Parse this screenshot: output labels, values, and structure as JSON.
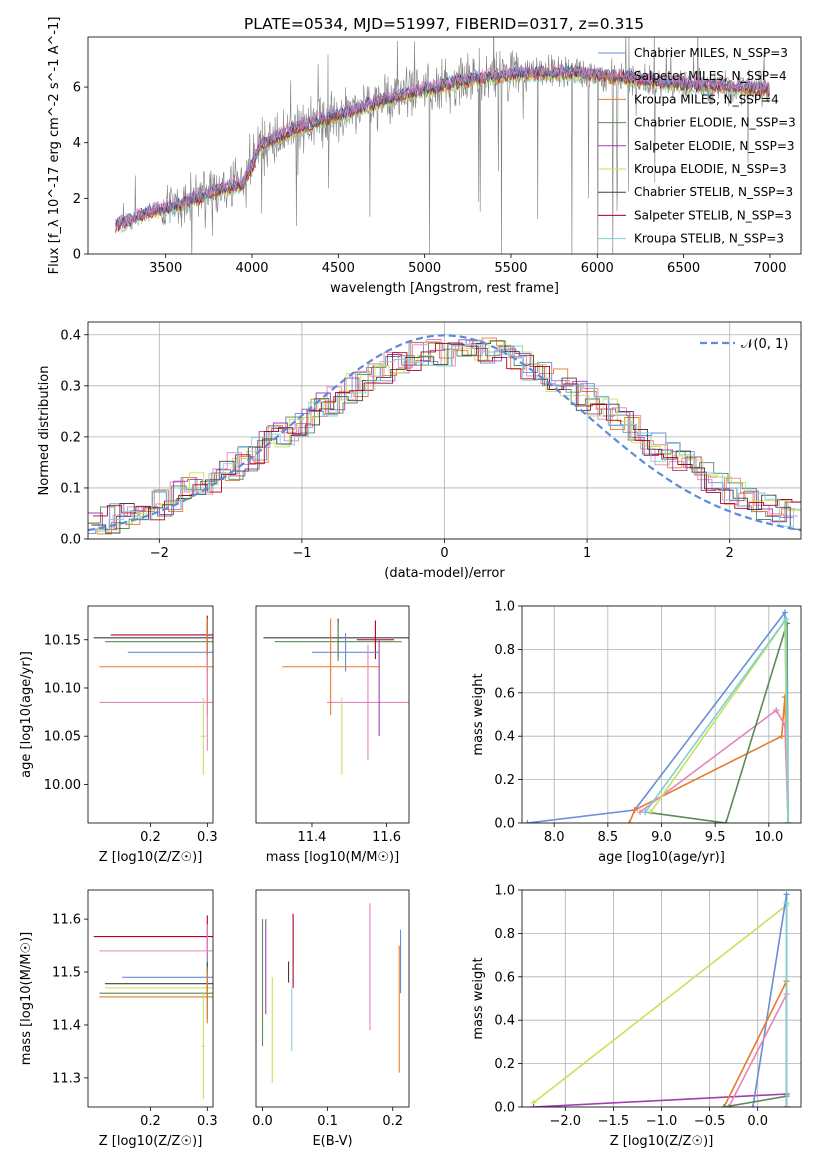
{
  "title": "PLATE=0534, MJD=51997, FIBERID=0317, z=0.315",
  "colors": {
    "observed": "#808080",
    "c1": "#6a8fd8",
    "c2": "#e87a2c",
    "c3": "#e285bf",
    "c4": "#5a8a5a",
    "c5": "#a040b0",
    "c6": "#c8e05a",
    "c7": "#404040",
    "c8": "#b00020",
    "c9": "#80d0d8",
    "gauss": "#5b8bd9"
  },
  "chart_data": [
    {
      "id": "spectrum",
      "type": "line",
      "xlabel": "wavelength [Angstrom, rest frame]",
      "ylabel": "Flux [f_λ 10^-17 erg cm^-2 s^-1 A^-1]",
      "xlim": [
        3050,
        7180
      ],
      "ylim": [
        0,
        7.8
      ],
      "xticks": [
        3500,
        4000,
        4500,
        5000,
        5500,
        6000,
        6500,
        7000
      ],
      "yticks": [
        0,
        2,
        4,
        6
      ],
      "continuum": {
        "x": [
          3210,
          3400,
          3600,
          3800,
          3950,
          4050,
          4250,
          4500,
          4800,
          5000,
          5300,
          5600,
          5900,
          6200,
          6500,
          6800,
          7000
        ],
        "y": [
          1.0,
          1.5,
          1.8,
          2.3,
          2.5,
          3.9,
          4.5,
          5.0,
          5.6,
          5.9,
          6.3,
          6.5,
          6.5,
          6.3,
          6.1,
          6.0,
          5.9
        ]
      },
      "legend": [
        {
          "label": "Chabrier MILES, N_SSP=3",
          "color": "c1"
        },
        {
          "label": "Salpeter MILES, N_SSP=4",
          "color": "c2"
        },
        {
          "label": "Kroupa MILES, N_SSP=4",
          "color": "c2"
        },
        {
          "label": "Chabrier ELODIE, N_SSP=3",
          "color": "c4"
        },
        {
          "label": "Salpeter ELODIE, N_SSP=3",
          "color": "c5"
        },
        {
          "label": "Kroupa ELODIE, N_SSP=3",
          "color": "c6"
        },
        {
          "label": "Chabrier STELIB, N_SSP=3",
          "color": "c7"
        },
        {
          "label": "Salpeter STELIB, N_SSP=3",
          "color": "c8"
        },
        {
          "label": "Kroupa STELIB, N_SSP=3",
          "color": "c9"
        }
      ],
      "legend_placement": "upper right"
    },
    {
      "id": "residuals",
      "type": "bar",
      "xlabel": "(data-model)/error",
      "ylabel": "Normed distribution",
      "xlim": [
        -2.5,
        2.5
      ],
      "ylim": [
        0,
        0.425
      ],
      "xticks": [
        -2,
        -1,
        0,
        1,
        2
      ],
      "yticks": [
        0.0,
        0.1,
        0.2,
        0.3,
        0.4
      ],
      "grid": true,
      "legend": [
        {
          "label": "N(0,1)",
          "color": "gauss"
        }
      ],
      "legend_placement": "upper right"
    },
    {
      "id": "age-vs-Z",
      "type": "scatter",
      "xlabel": "Z [log10(Z/Z☉)]",
      "ylabel": "age  [log10(age/yr)]",
      "xlim": [
        0.09,
        0.31
      ],
      "ylim": [
        9.96,
        10.185
      ],
      "xticks": [
        0.2,
        0.3
      ],
      "yticks": [
        10.0,
        10.05,
        10.1,
        10.15
      ],
      "points": [
        {
          "x": 0.3,
          "y": 10.152,
          "xerr": 0.2,
          "yerr": 0.02,
          "color": "c7"
        },
        {
          "x": 0.3,
          "y": 10.148,
          "xerr": 0.18,
          "yerr": 0.02,
          "color": "c4"
        },
        {
          "x": 0.3,
          "y": 10.155,
          "xerr": 0.17,
          "yerr": 0.02,
          "color": "c8"
        },
        {
          "x": 0.3,
          "y": 10.137,
          "xerr": 0.14,
          "yerr": 0.02,
          "color": "c1"
        },
        {
          "x": 0.3,
          "y": 10.122,
          "xerr": 0.19,
          "yerr": 0.05,
          "color": "c2"
        },
        {
          "x": 0.3,
          "y": 10.085,
          "xerr": 0.19,
          "yerr": 0.05,
          "color": "c3"
        },
        {
          "x": 0.293,
          "y": 10.05,
          "xerr": 0.005,
          "yerr": 0.04,
          "color": "c6"
        }
      ]
    },
    {
      "id": "age-vs-mass",
      "type": "scatter",
      "xlabel": "mass [log10(M/M☉)]",
      "ylabel": "",
      "xlim": [
        11.25,
        11.66
      ],
      "ylim": [
        9.96,
        10.185
      ],
      "xticks": [
        11.4,
        11.6
      ],
      "points": [
        {
          "x": 11.47,
          "y": 10.152,
          "xerr": 0.2,
          "yerr": 0.02,
          "color": "c7"
        },
        {
          "x": 11.47,
          "y": 10.148,
          "xerr": 0.17,
          "yerr": 0.02,
          "color": "c4"
        },
        {
          "x": 11.57,
          "y": 10.15,
          "xerr": 0.05,
          "yerr": 0.02,
          "color": "c8"
        },
        {
          "x": 11.49,
          "y": 10.137,
          "xerr": 0.09,
          "yerr": 0.02,
          "color": "c1"
        },
        {
          "x": 11.45,
          "y": 10.122,
          "xerr": 0.13,
          "yerr": 0.05,
          "color": "c2"
        },
        {
          "x": 11.55,
          "y": 10.085,
          "xerr": 0.11,
          "yerr": 0.06,
          "color": "c3"
        },
        {
          "x": 11.58,
          "y": 10.1,
          "xerr": 0.0,
          "yerr": 0.05,
          "color": "c5"
        },
        {
          "x": 11.48,
          "y": 10.05,
          "xerr": 0.0,
          "yerr": 0.04,
          "color": "c6"
        }
      ]
    },
    {
      "id": "massweight-vs-age",
      "type": "line",
      "xlabel": "age  [log10(age/yr)]",
      "ylabel": "mass weight",
      "xlim": [
        7.7,
        10.3
      ],
      "ylim": [
        0,
        1.0
      ],
      "xticks": [
        8.0,
        8.5,
        9.0,
        9.5,
        10.0
      ],
      "yticks": [
        0.0,
        0.2,
        0.4,
        0.6,
        0.8,
        1.0
      ],
      "grid": true,
      "series": [
        {
          "color": "c1",
          "x": [
            7.75,
            8.75,
            10.15,
            10.18
          ],
          "y": [
            0.0,
            0.06,
            0.97,
            0.0
          ]
        },
        {
          "color": "c2",
          "x": [
            8.7,
            8.75,
            10.12,
            10.15,
            10.18
          ],
          "y": [
            0.0,
            0.06,
            0.4,
            0.58,
            0.0
          ]
        },
        {
          "color": "c3",
          "x": [
            8.8,
            10.07,
            10.15,
            10.18
          ],
          "y": [
            0.05,
            0.52,
            0.45,
            0.0
          ]
        },
        {
          "color": "c4",
          "x": [
            8.85,
            9.6,
            10.17,
            10.18
          ],
          "y": [
            0.05,
            0.0,
            0.92,
            0.0
          ]
        },
        {
          "color": "c6",
          "x": [
            8.9,
            10.15,
            10.18
          ],
          "y": [
            0.05,
            0.93,
            0.0
          ]
        },
        {
          "color": "c9",
          "x": [
            8.85,
            10.16,
            10.18
          ],
          "y": [
            0.05,
            0.94,
            0.0
          ]
        }
      ]
    },
    {
      "id": "mass-vs-Z",
      "type": "scatter",
      "xlabel": "Z [log10(Z/Z☉)]",
      "ylabel": "mass [log10(M/M☉)]",
      "xlim": [
        0.09,
        0.31
      ],
      "ylim": [
        11.245,
        11.655
      ],
      "xticks": [
        0.2,
        0.3
      ],
      "yticks": [
        11.3,
        11.4,
        11.5,
        11.6
      ],
      "points": [
        {
          "x": 0.3,
          "y": 11.567,
          "xerr": 0.2,
          "yerr": 0.04,
          "color": "c8"
        },
        {
          "x": 0.3,
          "y": 11.54,
          "xerr": 0.19,
          "yerr": 0.05,
          "color": "c3"
        },
        {
          "x": 0.3,
          "y": 11.49,
          "xerr": 0.15,
          "yerr": 0.04,
          "color": "c1"
        },
        {
          "x": 0.3,
          "y": 11.478,
          "xerr": 0.18,
          "yerr": 0.04,
          "color": "c7"
        },
        {
          "x": 0.3,
          "y": 11.47,
          "xerr": 0.18,
          "yerr": 0.04,
          "color": "c6"
        },
        {
          "x": 0.3,
          "y": 11.46,
          "xerr": 0.19,
          "yerr": 0.05,
          "color": "c4"
        },
        {
          "x": 0.3,
          "y": 11.453,
          "xerr": 0.19,
          "yerr": 0.05,
          "color": "c2"
        },
        {
          "x": 0.293,
          "y": 11.36,
          "xerr": 0.003,
          "yerr": 0.1,
          "color": "c6"
        }
      ]
    },
    {
      "id": "mass-vs-EBV",
      "type": "scatter",
      "xlabel": "E(B-V)",
      "ylabel": "",
      "xlim": [
        -0.01,
        0.225
      ],
      "ylim": [
        11.245,
        11.655
      ],
      "xticks": [
        0.0,
        0.1,
        0.2
      ],
      "points": [
        {
          "x": 0.0,
          "y": 11.48,
          "xerr": 0,
          "yerr": 0.12,
          "color": "c4"
        },
        {
          "x": 0.005,
          "y": 11.51,
          "xerr": 0,
          "yerr": 0.09,
          "color": "c5"
        },
        {
          "x": 0.015,
          "y": 11.39,
          "xerr": 0,
          "yerr": 0.1,
          "color": "c6"
        },
        {
          "x": 0.04,
          "y": 11.5,
          "xerr": 0,
          "yerr": 0.02,
          "color": "c7"
        },
        {
          "x": 0.045,
          "y": 11.41,
          "xerr": 0,
          "yerr": 0.06,
          "color": "c9"
        },
        {
          "x": 0.047,
          "y": 11.54,
          "xerr": 0,
          "yerr": 0.07,
          "color": "c8"
        },
        {
          "x": 0.165,
          "y": 11.51,
          "xerr": 0,
          "yerr": 0.12,
          "color": "c3"
        },
        {
          "x": 0.21,
          "y": 11.43,
          "xerr": 0,
          "yerr": 0.12,
          "color": "c2"
        },
        {
          "x": 0.212,
          "y": 11.52,
          "xerr": 0,
          "yerr": 0.06,
          "color": "c1"
        }
      ]
    },
    {
      "id": "massweight-vs-Z",
      "type": "line",
      "xlabel": "Z [log10(Z/Z☉)]",
      "ylabel": "mass weight",
      "xlim": [
        -2.45,
        0.45
      ],
      "ylim": [
        0,
        1.0
      ],
      "xticks": [
        -2.0,
        -1.5,
        -1.0,
        -0.5,
        0.0
      ],
      "yticks": [
        0.0,
        0.2,
        0.4,
        0.6,
        0.8,
        1.0
      ],
      "grid": true,
      "series": [
        {
          "color": "c6",
          "x": [
            -2.33,
            0.3,
            0.3
          ],
          "y": [
            0.02,
            0.93,
            0.0
          ]
        },
        {
          "color": "c5",
          "x": [
            -2.33,
            0.3
          ],
          "y": [
            0.0,
            0.06
          ]
        },
        {
          "color": "c1",
          "x": [
            -0.05,
            0.3,
            0.3
          ],
          "y": [
            0.0,
            0.98,
            0.0
          ]
        },
        {
          "color": "c2",
          "x": [
            -0.35,
            0.3,
            0.3
          ],
          "y": [
            0.0,
            0.58,
            0.0
          ]
        },
        {
          "color": "c3",
          "x": [
            -0.3,
            0.3,
            0.3
          ],
          "y": [
            0.0,
            0.52,
            0.0
          ]
        },
        {
          "color": "c4",
          "x": [
            -0.35,
            0.3,
            0.3
          ],
          "y": [
            0.0,
            0.05,
            0.0
          ]
        },
        {
          "color": "c9",
          "x": [
            0.3,
            0.3
          ],
          "y": [
            0.0,
            0.94
          ]
        }
      ]
    }
  ]
}
